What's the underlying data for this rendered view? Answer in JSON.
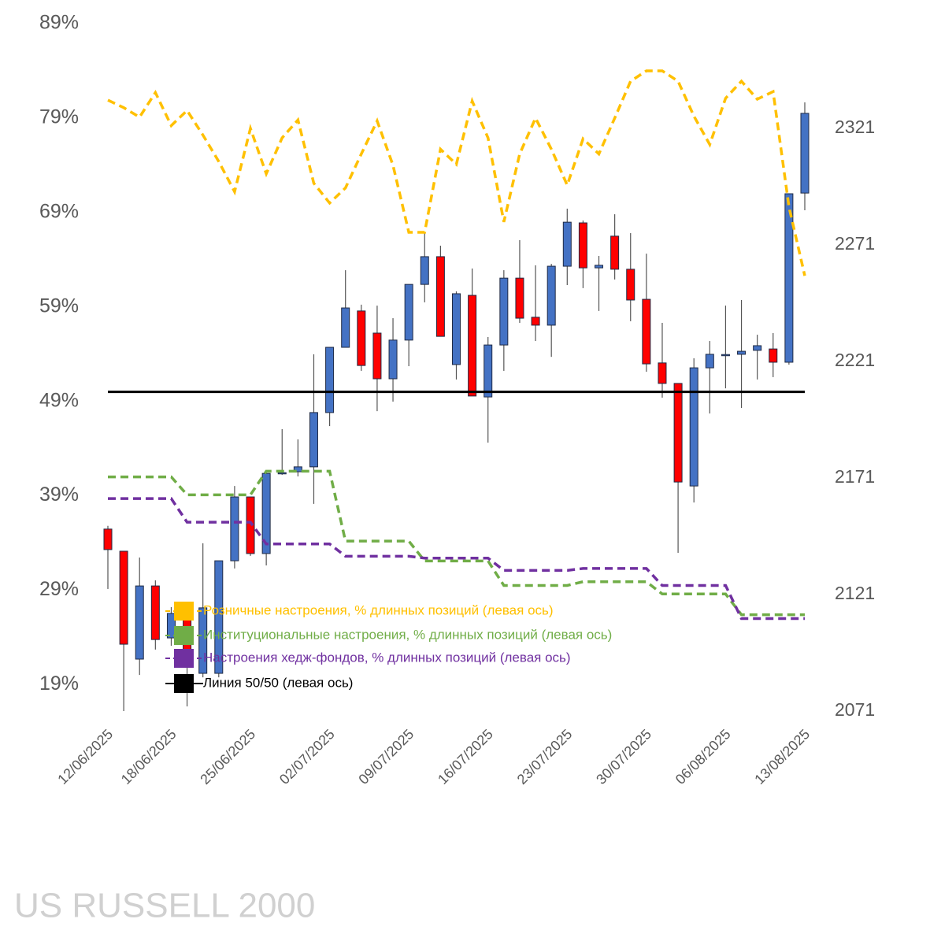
{
  "chart_data": {
    "type": "candlestick",
    "title": "US RUSSELL 2000",
    "categories": [
      "12/06/2025",
      null,
      null,
      null,
      "18/06/2025",
      null,
      null,
      null,
      null,
      "25/06/2025",
      null,
      null,
      null,
      null,
      "02/07/2025",
      null,
      null,
      null,
      null,
      "09/07/2025",
      null,
      null,
      null,
      null,
      "16/07/2025",
      null,
      null,
      null,
      null,
      "23/07/2025",
      null,
      null,
      null,
      null,
      "30/07/2025",
      null,
      null,
      null,
      null,
      "06/08/2025",
      null,
      null,
      null,
      null,
      "13/08/2025"
    ],
    "candles": {
      "axis": "y2",
      "up_color": "#4472c4",
      "down_color": "#ff0000",
      "open": [
        2149.1,
        2139.6,
        2093.3,
        2124.7,
        2102.4,
        2111.5,
        2087.2,
        2087.2,
        2135.5,
        2162.9,
        2138.6,
        2173.0,
        2173.7,
        2175.8,
        2199.1,
        2227.1,
        2242.7,
        2233.2,
        2213.6,
        2230.2,
        2254.1,
        2266.0,
        2219.7,
        2249.4,
        2205.8,
        2228.1,
        2256.8,
        2240.0,
        2236.6,
        2261.9,
        2280.5,
        2261.2,
        2274.8,
        2260.6,
        2247.7,
        2220.4,
        2211.6,
        2167.6,
        2218.3,
        2223.7,
        2224.1,
        2225.8,
        2226.4,
        2220.7,
        2293.3
      ],
      "high": [
        2150.5,
        2139.6,
        2136.9,
        2127.1,
        2115.6,
        2114.2,
        2143.0,
        2135.5,
        2167.6,
        2162.9,
        2174.4,
        2192.0,
        2187.6,
        2224.1,
        2227.1,
        2260.2,
        2245.4,
        2245.0,
        2239.6,
        2254.1,
        2276.1,
        2270.7,
        2251.1,
        2260.9,
        2231.5,
        2260.2,
        2273.1,
        2262.3,
        2262.9,
        2286.6,
        2281.5,
        2266.3,
        2284.2,
        2276.1,
        2267.3,
        2237.6,
        2211.6,
        2222.4,
        2229.8,
        2245.0,
        2247.4,
        2232.5,
        2233.2,
        2293.0,
        2332.2
      ],
      "low": [
        2123.4,
        2071.0,
        2086.5,
        2097.4,
        2099.0,
        2073.0,
        2085.5,
        2085.5,
        2132.2,
        2137.6,
        2133.5,
        2172.4,
        2171.7,
        2159.9,
        2193.3,
        2227.1,
        2217.0,
        2199.7,
        2203.8,
        2219.0,
        2246.4,
        2231.8,
        2213.3,
        2206.2,
        2186.2,
        2217.0,
        2237.6,
        2229.8,
        2223.0,
        2253.8,
        2252.5,
        2242.7,
        2256.2,
        2238.3,
        2216.6,
        2205.5,
        2138.9,
        2160.5,
        2198.7,
        2209.5,
        2201.1,
        2213.3,
        2214.3,
        2219.7,
        2285.9
      ],
      "close": [
        2140.3,
        2099.7,
        2124.7,
        2101.7,
        2112.9,
        2097.0,
        2115.3,
        2135.5,
        2162.9,
        2138.6,
        2173.0,
        2173.3,
        2175.8,
        2199.1,
        2227.1,
        2244.0,
        2219.3,
        2213.6,
        2230.2,
        2254.1,
        2266.0,
        2231.8,
        2250.1,
        2206.2,
        2228.1,
        2256.8,
        2239.6,
        2236.6,
        2261.9,
        2280.8,
        2261.2,
        2262.3,
        2260.6,
        2247.4,
        2220.0,
        2211.6,
        2169.3,
        2218.3,
        2224.1,
        2224.0,
        2225.4,
        2227.8,
        2220.7,
        2293.0,
        2327.5
      ]
    },
    "series": [
      {
        "name": "Розничные настроения, % длинных позиций (левая ось)",
        "color": "#ffc000",
        "dashed": true,
        "values": [
          80.9,
          80.1,
          79.1,
          81.7,
          78.2,
          79.8,
          77.2,
          74.4,
          71.2,
          77.9,
          73.1,
          76.9,
          78.8,
          72.1,
          70.0,
          71.6,
          75.2,
          78.7,
          74.0,
          66.9,
          66.9,
          75.7,
          74.1,
          80.8,
          76.9,
          68.0,
          75.2,
          79.0,
          75.7,
          71.9,
          76.8,
          75.2,
          79.0,
          82.9,
          84.0,
          84.0,
          82.9,
          79.2,
          76.2,
          81.1,
          82.9,
          81.0,
          81.8,
          69.6,
          62.3
        ]
      },
      {
        "name": "Институциональные настроения, % длинных позиций (левая ось)",
        "color": "#70ad47",
        "dashed": true,
        "values": [
          41.0,
          41.0,
          41.0,
          41.0,
          41.0,
          39.1,
          39.1,
          39.1,
          39.1,
          39.1,
          41.6,
          41.6,
          41.6,
          41.6,
          41.6,
          34.2,
          34.2,
          34.2,
          34.2,
          34.2,
          32.1,
          32.1,
          32.1,
          32.1,
          32.1,
          29.5,
          29.5,
          29.5,
          29.5,
          29.5,
          29.9,
          29.9,
          29.9,
          29.9,
          29.9,
          28.6,
          28.6,
          28.6,
          28.6,
          28.6,
          26.4,
          26.4,
          26.4,
          26.4,
          26.4
        ]
      },
      {
        "name": "Настроения хедж-фондов, % длинных позиций (левая ось)",
        "color": "#7030a0",
        "dashed": true,
        "values": [
          38.7,
          38.7,
          38.7,
          38.7,
          38.7,
          36.2,
          36.2,
          36.2,
          36.2,
          36.2,
          33.9,
          33.9,
          33.9,
          33.9,
          33.9,
          32.6,
          32.6,
          32.6,
          32.6,
          32.6,
          32.4,
          32.4,
          32.4,
          32.4,
          32.4,
          31.1,
          31.1,
          31.1,
          31.1,
          31.1,
          31.3,
          31.3,
          31.3,
          31.3,
          31.3,
          29.5,
          29.5,
          29.5,
          29.5,
          29.5,
          26.0,
          26.0,
          26.0,
          26.0,
          26.0
        ]
      },
      {
        "name": "Линия 50/50 (левая ось)",
        "color": "#000000",
        "dashed": false,
        "values": [
          50,
          50,
          50,
          50,
          50,
          50,
          50,
          50,
          50,
          50,
          50,
          50,
          50,
          50,
          50,
          50,
          50,
          50,
          50,
          50,
          50,
          50,
          50,
          50,
          50,
          50,
          50,
          50,
          50,
          50,
          50,
          50,
          50,
          50,
          50,
          50,
          50,
          50,
          50,
          50,
          50,
          50,
          50,
          50,
          50
        ]
      }
    ],
    "ylim": [
      16.2,
      89
    ],
    "yticks": [
      {
        "value": 19,
        "label": "19%"
      },
      {
        "value": 29,
        "label": "29%"
      },
      {
        "value": 39,
        "label": "39%"
      },
      {
        "value": 49,
        "label": "49%"
      },
      {
        "value": 59,
        "label": "59%"
      },
      {
        "value": 69,
        "label": "69%"
      },
      {
        "value": 79,
        "label": "79%"
      },
      {
        "value": 89,
        "label": "89%"
      }
    ],
    "y2lim": [
      2071,
      2366
    ],
    "y2ticks": [
      2071,
      2121,
      2171,
      2221,
      2271,
      2321
    ],
    "legend": "bottom-left"
  }
}
